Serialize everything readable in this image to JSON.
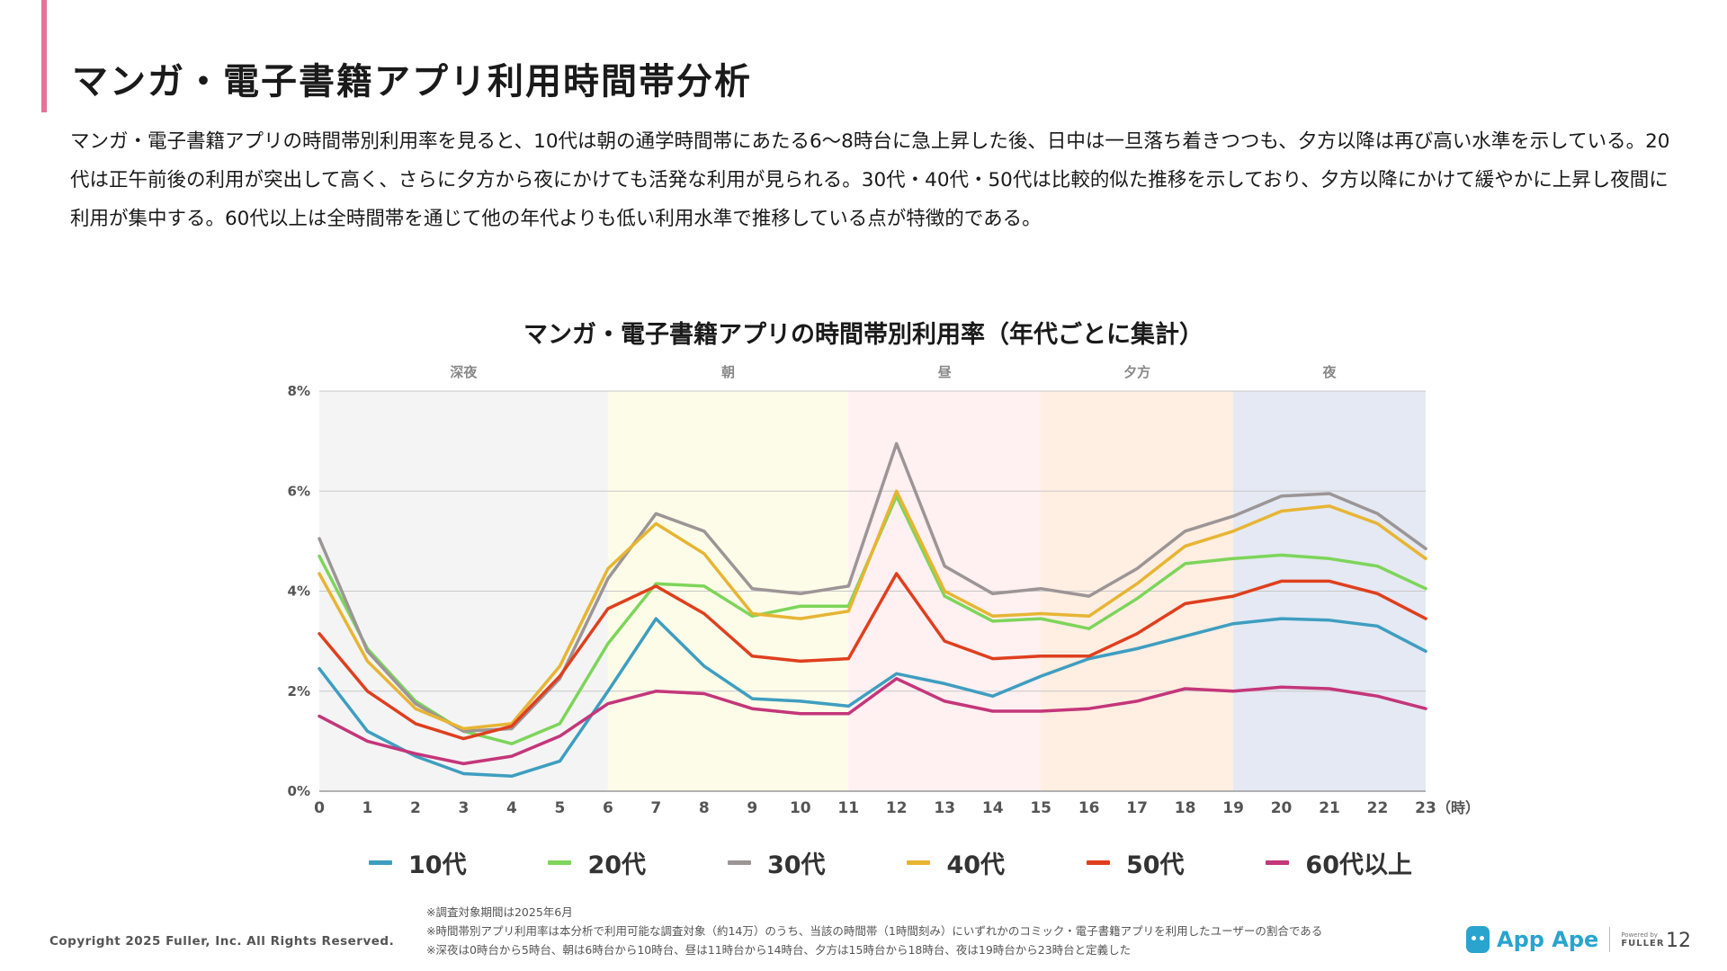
{
  "title": "マンガ・電子書籍アプリ利用時間帯分析",
  "summary": "マンガ・電子書籍アプリの時間帯別利用率を見ると、10代は朝の通学時間帯にあたる6〜8時台に急上昇した後、日中は一旦落ち着きつつも、夕方以降は再び高い水準を示している。20代は正午前後の利用が突出して高く、さらに夕方から夜にかけても活発な利用が見られる。30代・40代・50代は比較的似た推移を示しており、夕方以降にかけて緩やかに上昇し夜間に利用が集中する。60代以上は全時間帯を通じて他の年代よりも低い利用水準で推移している点が特徴的である。",
  "chart_data": {
    "type": "line",
    "title": "マンガ・電子書籍アプリの時間帯別利用率（年代ごとに集計）",
    "x_unit_label": "（時）",
    "x": [
      0,
      1,
      2,
      3,
      4,
      5,
      6,
      7,
      8,
      9,
      10,
      11,
      12,
      13,
      14,
      15,
      16,
      17,
      18,
      19,
      20,
      21,
      22,
      23
    ],
    "ylim": [
      0,
      8
    ],
    "yticks": [
      0,
      2,
      4,
      6,
      8
    ],
    "ytick_labels": [
      "0%",
      "2%",
      "4%",
      "6%",
      "8%"
    ],
    "grid": "horizontal",
    "legend_position": "bottom",
    "bands": [
      {
        "label": "深夜",
        "start": 0,
        "end": 6,
        "color": "#f4f4f4"
      },
      {
        "label": "朝",
        "start": 6,
        "end": 11,
        "color": "#fdfce8"
      },
      {
        "label": "昼",
        "start": 11,
        "end": 15,
        "color": "#fff0f1"
      },
      {
        "label": "夕方",
        "start": 15,
        "end": 19,
        "color": "#ffeee2"
      },
      {
        "label": "夜",
        "start": 19,
        "end": 23,
        "color": "#e4e9f3"
      }
    ],
    "series": [
      {
        "name": "10代",
        "color": "#3e9ec0",
        "values": [
          2.45,
          1.2,
          0.7,
          0.35,
          0.3,
          0.6,
          2.0,
          3.45,
          2.5,
          1.85,
          1.8,
          1.7,
          2.35,
          2.15,
          1.9,
          2.3,
          2.65,
          2.85,
          3.1,
          3.35,
          3.45,
          3.42,
          3.3,
          2.8
        ]
      },
      {
        "name": "20代",
        "color": "#7dd55a",
        "values": [
          4.7,
          2.85,
          1.8,
          1.2,
          0.95,
          1.35,
          2.95,
          4.15,
          4.1,
          3.5,
          3.7,
          3.7,
          5.9,
          3.9,
          3.4,
          3.45,
          3.25,
          3.85,
          4.55,
          4.65,
          4.72,
          4.65,
          4.5,
          4.05
        ]
      },
      {
        "name": "30代",
        "color": "#9c9596",
        "values": [
          5.05,
          2.8,
          1.75,
          1.2,
          1.25,
          2.25,
          4.25,
          5.55,
          5.2,
          4.05,
          3.95,
          4.1,
          6.95,
          4.5,
          3.95,
          4.05,
          3.9,
          4.45,
          5.2,
          5.5,
          5.9,
          5.95,
          5.55,
          4.85
        ]
      },
      {
        "name": "40代",
        "color": "#e7b534",
        "values": [
          4.35,
          2.6,
          1.65,
          1.25,
          1.35,
          2.5,
          4.45,
          5.35,
          4.75,
          3.55,
          3.45,
          3.6,
          6.0,
          4.0,
          3.5,
          3.55,
          3.5,
          4.15,
          4.9,
          5.2,
          5.6,
          5.7,
          5.35,
          4.65
        ]
      },
      {
        "name": "50代",
        "color": "#df3f1e",
        "values": [
          3.15,
          2.0,
          1.35,
          1.05,
          1.3,
          2.3,
          3.65,
          4.1,
          3.55,
          2.7,
          2.6,
          2.65,
          4.35,
          3.0,
          2.65,
          2.7,
          2.7,
          3.15,
          3.75,
          3.9,
          4.2,
          4.2,
          3.95,
          3.45
        ]
      },
      {
        "name": "60代以上",
        "color": "#c4367a",
        "values": [
          1.5,
          1.0,
          0.75,
          0.55,
          0.7,
          1.1,
          1.75,
          2.0,
          1.95,
          1.65,
          1.55,
          1.55,
          2.25,
          1.8,
          1.6,
          1.6,
          1.65,
          1.8,
          2.05,
          2.0,
          2.08,
          2.05,
          1.9,
          1.65
        ]
      }
    ]
  },
  "notes": [
    "※調査対象期間は2025年6月",
    "※時間帯別アプリ利用率は本分析で利用可能な調査対象（約14万）のうち、当該の時間帯（1時間刻み）にいずれかのコミック・電子書籍アプリを利用したユーザーの割合である",
    "※深夜は0時台から5時台、朝は6時台から10時台、昼は11時台から14時台、夕方は15時台から18時台、夜は19時台から23時台と定義した"
  ],
  "footer": {
    "copyright": "Copyright 2025 Fuller, Inc. All Rights Reserved.",
    "brand_name": "App Ape",
    "powered_by": "Powered by",
    "powered_brand": "FULLER",
    "page_number": "12"
  }
}
